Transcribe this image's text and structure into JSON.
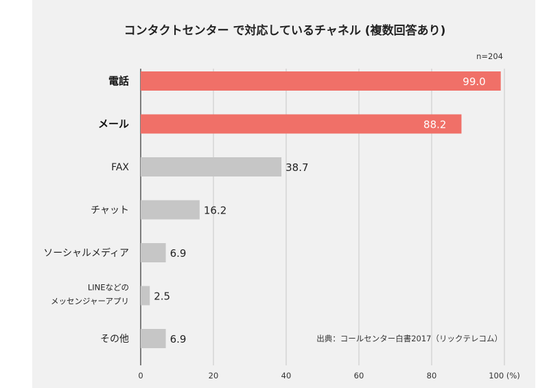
{
  "chart_data": {
    "type": "bar",
    "orientation": "horizontal",
    "title": "コンタクトセンター で対応しているチャネル (複数回答あり)",
    "sample_note": "n=204",
    "source": "出典：コールセンター白書2017（リックテレコム）",
    "categories": [
      {
        "label": "電話",
        "lines": [
          "電話"
        ],
        "highlight": true
      },
      {
        "label": "メール",
        "lines": [
          "メール"
        ],
        "highlight": true
      },
      {
        "label": "FAX",
        "lines": [
          "FAX"
        ],
        "highlight": false
      },
      {
        "label": "チャット",
        "lines": [
          "チャット"
        ],
        "highlight": false
      },
      {
        "label": "ソーシャルメディア",
        "lines": [
          "ソーシャルメディア"
        ],
        "highlight": false
      },
      {
        "label": "LINEなどのメッセンジャーアプリ",
        "lines": [
          "LINEなどの",
          "メッセンジャーアプリ"
        ],
        "highlight": false
      },
      {
        "label": "その他",
        "lines": [
          "その他"
        ],
        "highlight": false
      }
    ],
    "values": [
      99.0,
      88.2,
      38.7,
      16.2,
      6.9,
      2.5,
      6.9
    ],
    "value_labels": [
      "99.0",
      "88.2",
      "38.7",
      "16.2",
      "6.9",
      "2.5",
      "6.9"
    ],
    "xlim": [
      0,
      100
    ],
    "xticks": [
      0,
      20,
      40,
      60,
      80,
      100
    ],
    "xtick_labels": [
      "0",
      "20",
      "40",
      "60",
      "80",
      "100 (%)"
    ],
    "grid": "vertical",
    "colors": {
      "highlight": "#f07068",
      "normal": "#c6c6c6",
      "grid": "#c8c8c8",
      "axis": "#555555"
    }
  }
}
